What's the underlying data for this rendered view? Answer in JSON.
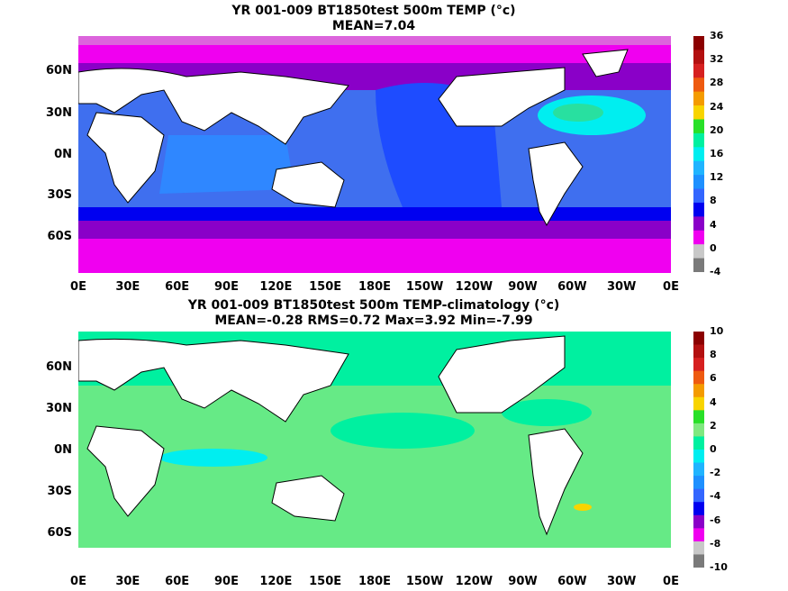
{
  "panels": [
    {
      "title": "YR 001-009 BT1850test 500m TEMP (°c)",
      "stats": "MEAN=7.04",
      "colorbar_ticks": [
        "36",
        "32",
        "28",
        "24",
        "20",
        "16",
        "12",
        "8",
        "4",
        "0",
        "-4"
      ],
      "colorbar_colors": [
        "#8b0000",
        "#b31010",
        "#d62020",
        "#ee5a10",
        "#f49b00",
        "#f8d400",
        "#28e028",
        "#00f0a0",
        "#00eef0",
        "#20b4ff",
        "#1e90ff",
        "#3366ff",
        "#0000f0",
        "#8a00c8",
        "#f000f0",
        "#c8c8c8",
        "#7a7a7a"
      ]
    },
    {
      "title": "YR 001-009 BT1850test 500m TEMP-climatology (°c)",
      "stats": "MEAN=-0.28   RMS=0.72   Max=3.92   Min=-7.99",
      "colorbar_ticks": [
        "10",
        "8",
        "6",
        "4",
        "2",
        "0",
        "-2",
        "-4",
        "-6",
        "-8",
        "-10"
      ],
      "colorbar_colors": [
        "#8b0000",
        "#b31010",
        "#d62020",
        "#ee5a10",
        "#f49b00",
        "#f8d400",
        "#28e028",
        "#80e880",
        "#00f0a0",
        "#00eef0",
        "#20b4ff",
        "#1e90ff",
        "#3366ff",
        "#0000f0",
        "#8a00c8",
        "#f000f0",
        "#c8c8c8",
        "#7a7a7a"
      ]
    }
  ],
  "lat_labels": [
    "60N",
    "30N",
    "0N",
    "30S",
    "60S"
  ],
  "lon_labels": [
    "0E",
    "30E",
    "60E",
    "90E",
    "120E",
    "150E",
    "180E",
    "150W",
    "120W",
    "90W",
    "60W",
    "30W",
    "0E"
  ]
}
